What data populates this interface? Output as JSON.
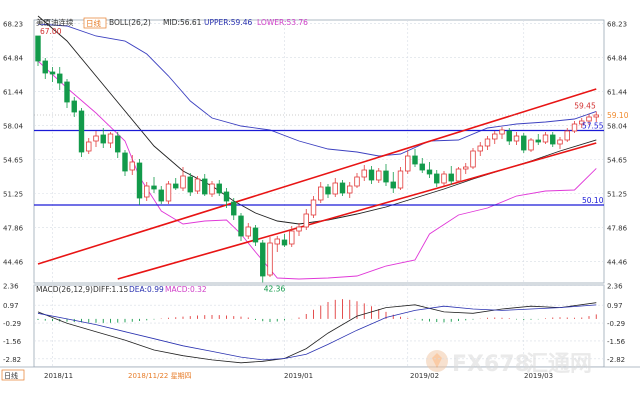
{
  "header": {
    "instrument": "美原油连续",
    "period_badge": "日线",
    "indicator": "BOLL(26,2)",
    "mid": "MID:56.61",
    "upper": "UPPER:59.46",
    "lower": "LOWER:53.76"
  },
  "macd_header": {
    "indicator": "MACD(26,12,9)",
    "diff": "DIFF:1.15",
    "dea": "DEA:0.99",
    "macd": "MACD:0.32"
  },
  "footer": {
    "period_badge": "日线",
    "date_labels": [
      "2018/11",
      "2018/11/22 星期四",
      "2019/01",
      "2019/02",
      "2019/03"
    ]
  },
  "watermark": {
    "brand": "FX678",
    "site": "汇通网"
  },
  "colors": {
    "up": "#e23b3b",
    "down": "#129a4a",
    "boll_mid": "#222222",
    "boll_upper": "#3c40c0",
    "boll_lower": "#e038d8",
    "channel": "#e81414",
    "support": "#1a1ad6",
    "dea": "#2a32b0"
  },
  "chart_data": [
    {
      "type": "candlestick",
      "title": "美原油连续",
      "y_ticks": [
        "68.23",
        "64.84",
        "61.44",
        "58.04",
        "54.65",
        "51.25",
        "47.86",
        "44.46"
      ],
      "ylim": [
        42.3,
        68.6
      ],
      "grid": true,
      "x_labels": [
        "2018/11",
        "2019/01",
        "2019/02",
        "2019/03"
      ],
      "candles": [
        {
          "o": 67.0,
          "h": 67.0,
          "l": 64.0,
          "c": 64.5
        },
        {
          "o": 64.5,
          "h": 64.8,
          "l": 62.7,
          "c": 63.3
        },
        {
          "o": 63.4,
          "h": 63.9,
          "l": 62.4,
          "c": 63.2
        },
        {
          "o": 63.2,
          "h": 63.9,
          "l": 61.6,
          "c": 62.3
        },
        {
          "o": 62.4,
          "h": 62.7,
          "l": 59.8,
          "c": 60.4
        },
        {
          "o": 60.5,
          "h": 60.9,
          "l": 58.9,
          "c": 59.4
        },
        {
          "o": 59.5,
          "h": 59.8,
          "l": 54.9,
          "c": 55.4
        },
        {
          "o": 55.5,
          "h": 56.8,
          "l": 55.2,
          "c": 56.4
        },
        {
          "o": 56.5,
          "h": 57.5,
          "l": 55.9,
          "c": 57.0
        },
        {
          "o": 57.1,
          "h": 57.8,
          "l": 55.8,
          "c": 56.3
        },
        {
          "o": 56.3,
          "h": 57.4,
          "l": 55.8,
          "c": 57.2
        },
        {
          "o": 57.0,
          "h": 57.4,
          "l": 54.8,
          "c": 55.4
        },
        {
          "o": 55.3,
          "h": 55.6,
          "l": 53.0,
          "c": 53.5
        },
        {
          "o": 53.6,
          "h": 55.1,
          "l": 53.1,
          "c": 54.4
        },
        {
          "o": 54.3,
          "h": 54.7,
          "l": 50.1,
          "c": 50.8
        },
        {
          "o": 50.9,
          "h": 52.4,
          "l": 50.5,
          "c": 52.0
        },
        {
          "o": 52.0,
          "h": 52.9,
          "l": 51.3,
          "c": 51.7
        },
        {
          "o": 51.6,
          "h": 52.0,
          "l": 50.2,
          "c": 50.5
        },
        {
          "o": 50.5,
          "h": 52.5,
          "l": 50.2,
          "c": 52.2
        },
        {
          "o": 52.2,
          "h": 52.8,
          "l": 51.6,
          "c": 51.8
        },
        {
          "o": 51.8,
          "h": 53.9,
          "l": 51.5,
          "c": 53.0
        },
        {
          "o": 52.9,
          "h": 53.3,
          "l": 51.0,
          "c": 51.4
        },
        {
          "o": 51.5,
          "h": 53.0,
          "l": 51.2,
          "c": 52.7
        },
        {
          "o": 52.7,
          "h": 53.2,
          "l": 51.0,
          "c": 51.2
        },
        {
          "o": 51.2,
          "h": 52.5,
          "l": 50.9,
          "c": 52.2
        },
        {
          "o": 52.2,
          "h": 52.6,
          "l": 51.0,
          "c": 51.3
        },
        {
          "o": 51.4,
          "h": 51.8,
          "l": 49.8,
          "c": 50.5
        },
        {
          "o": 50.4,
          "h": 50.8,
          "l": 48.6,
          "c": 49.1
        },
        {
          "o": 49.0,
          "h": 49.3,
          "l": 46.5,
          "c": 47.0
        },
        {
          "o": 47.0,
          "h": 48.3,
          "l": 46.7,
          "c": 47.9
        },
        {
          "o": 47.8,
          "h": 48.1,
          "l": 46.0,
          "c": 46.4
        },
        {
          "o": 46.3,
          "h": 46.6,
          "l": 42.36,
          "c": 43.0
        },
        {
          "o": 43.1,
          "h": 46.9,
          "l": 42.9,
          "c": 46.3
        },
        {
          "o": 46.2,
          "h": 47.0,
          "l": 45.4,
          "c": 46.7
        },
        {
          "o": 46.6,
          "h": 47.2,
          "l": 45.9,
          "c": 46.1
        },
        {
          "o": 46.2,
          "h": 48.0,
          "l": 45.9,
          "c": 47.5
        },
        {
          "o": 47.5,
          "h": 48.3,
          "l": 47.0,
          "c": 47.9
        },
        {
          "o": 47.9,
          "h": 49.7,
          "l": 47.6,
          "c": 49.2
        },
        {
          "o": 49.1,
          "h": 51.0,
          "l": 48.8,
          "c": 50.6
        },
        {
          "o": 50.6,
          "h": 52.4,
          "l": 50.3,
          "c": 51.9
        },
        {
          "o": 51.9,
          "h": 52.2,
          "l": 50.8,
          "c": 51.2
        },
        {
          "o": 51.2,
          "h": 52.8,
          "l": 50.9,
          "c": 52.3
        },
        {
          "o": 52.3,
          "h": 52.6,
          "l": 51.0,
          "c": 51.3
        },
        {
          "o": 51.3,
          "h": 52.4,
          "l": 50.8,
          "c": 52.0
        },
        {
          "o": 52.0,
          "h": 53.3,
          "l": 51.8,
          "c": 52.9
        },
        {
          "o": 52.9,
          "h": 54.1,
          "l": 52.5,
          "c": 53.6
        },
        {
          "o": 53.6,
          "h": 54.0,
          "l": 52.2,
          "c": 52.6
        },
        {
          "o": 52.6,
          "h": 53.8,
          "l": 52.3,
          "c": 53.5
        },
        {
          "o": 53.5,
          "h": 54.2,
          "l": 52.0,
          "c": 52.4
        },
        {
          "o": 52.4,
          "h": 53.4,
          "l": 51.3,
          "c": 51.8
        },
        {
          "o": 51.8,
          "h": 53.9,
          "l": 51.6,
          "c": 53.5
        },
        {
          "o": 53.5,
          "h": 55.6,
          "l": 53.2,
          "c": 55.0
        },
        {
          "o": 55.0,
          "h": 55.7,
          "l": 53.9,
          "c": 54.2
        },
        {
          "o": 54.2,
          "h": 54.8,
          "l": 53.3,
          "c": 53.6
        },
        {
          "o": 53.6,
          "h": 54.4,
          "l": 52.8,
          "c": 53.2
        },
        {
          "o": 53.2,
          "h": 53.6,
          "l": 51.9,
          "c": 52.3
        },
        {
          "o": 52.3,
          "h": 53.5,
          "l": 52.0,
          "c": 53.2
        },
        {
          "o": 53.2,
          "h": 54.0,
          "l": 52.1,
          "c": 52.5
        },
        {
          "o": 52.5,
          "h": 53.9,
          "l": 52.3,
          "c": 53.7
        },
        {
          "o": 53.7,
          "h": 54.3,
          "l": 53.2,
          "c": 53.9
        },
        {
          "o": 53.9,
          "h": 55.8,
          "l": 53.7,
          "c": 55.5
        },
        {
          "o": 55.5,
          "h": 56.4,
          "l": 55.0,
          "c": 56.0
        },
        {
          "o": 56.0,
          "h": 57.0,
          "l": 55.6,
          "c": 56.7
        },
        {
          "o": 56.7,
          "h": 57.5,
          "l": 56.2,
          "c": 57.2
        },
        {
          "o": 57.2,
          "h": 57.9,
          "l": 56.7,
          "c": 57.6
        },
        {
          "o": 57.5,
          "h": 57.8,
          "l": 56.1,
          "c": 56.5
        },
        {
          "o": 56.5,
          "h": 57.4,
          "l": 56.1,
          "c": 57.0
        },
        {
          "o": 57.0,
          "h": 57.3,
          "l": 55.3,
          "c": 55.6
        },
        {
          "o": 55.6,
          "h": 56.8,
          "l": 55.4,
          "c": 56.6
        },
        {
          "o": 56.6,
          "h": 57.2,
          "l": 56.1,
          "c": 56.4
        },
        {
          "o": 56.4,
          "h": 57.4,
          "l": 56.2,
          "c": 57.1
        },
        {
          "o": 57.1,
          "h": 57.4,
          "l": 55.9,
          "c": 56.2
        },
        {
          "o": 56.2,
          "h": 56.9,
          "l": 55.7,
          "c": 56.6
        },
        {
          "o": 56.6,
          "h": 57.8,
          "l": 56.4,
          "c": 57.5
        },
        {
          "o": 57.5,
          "h": 58.5,
          "l": 57.3,
          "c": 58.2
        },
        {
          "o": 58.2,
          "h": 58.8,
          "l": 57.8,
          "c": 58.5
        },
        {
          "o": 58.5,
          "h": 59.2,
          "l": 58.1,
          "c": 58.9
        },
        {
          "o": 58.9,
          "h": 59.45,
          "l": 58.4,
          "c": 59.1
        }
      ],
      "bollinger": {
        "mid": [
          [
            0,
            69.0
          ],
          [
            4,
            66.5
          ],
          [
            8,
            63.0
          ],
          [
            12,
            59.5
          ],
          [
            16,
            56.0
          ],
          [
            20,
            53.5
          ],
          [
            24,
            52.0
          ],
          [
            27,
            50.5
          ],
          [
            30,
            49.3
          ],
          [
            33,
            48.5
          ],
          [
            36,
            48.2
          ],
          [
            40,
            48.6
          ],
          [
            44,
            49.2
          ],
          [
            48,
            49.9
          ],
          [
            52,
            50.8
          ],
          [
            56,
            51.7
          ],
          [
            60,
            52.7
          ],
          [
            64,
            53.6
          ],
          [
            68,
            54.5
          ],
          [
            72,
            55.5
          ],
          [
            77,
            56.61
          ]
        ],
        "upper": [
          [
            0,
            68.2
          ],
          [
            4,
            68.0
          ],
          [
            8,
            67.0
          ],
          [
            12,
            66.5
          ],
          [
            15,
            65.2
          ],
          [
            18,
            63.0
          ],
          [
            21,
            60.5
          ],
          [
            24,
            58.8
          ],
          [
            28,
            58.0
          ],
          [
            32,
            57.6
          ],
          [
            36,
            56.5
          ],
          [
            40,
            55.7
          ],
          [
            44,
            55.4
          ],
          [
            47,
            55.0
          ],
          [
            50,
            55.2
          ],
          [
            54,
            56.5
          ],
          [
            58,
            56.6
          ],
          [
            62,
            57.8
          ],
          [
            66,
            58.2
          ],
          [
            70,
            58.4
          ],
          [
            74,
            58.7
          ],
          [
            77,
            59.46
          ]
        ],
        "lower": [
          [
            0,
            64.5
          ],
          [
            4,
            61.8
          ],
          [
            8,
            59.3
          ],
          [
            12,
            56.5
          ],
          [
            14,
            52.9
          ],
          [
            17,
            49.5
          ],
          [
            20,
            48.2
          ],
          [
            23,
            48.5
          ],
          [
            26,
            48.6
          ],
          [
            28,
            47.2
          ],
          [
            30,
            45.4
          ],
          [
            33,
            42.8
          ],
          [
            36,
            42.7
          ],
          [
            40,
            42.8
          ],
          [
            44,
            43.0
          ],
          [
            48,
            44.0
          ],
          [
            52,
            44.6
          ],
          [
            54,
            47.2
          ],
          [
            58,
            49.1
          ],
          [
            62,
            49.8
          ],
          [
            66,
            51.0
          ],
          [
            70,
            51.5
          ],
          [
            74,
            51.6
          ],
          [
            77,
            53.76
          ]
        ]
      },
      "channel_upper": [
        [
          0,
          44.2
        ],
        [
          77,
          61.7
        ]
      ],
      "channel_lower": [
        [
          11,
          42.7
        ],
        [
          77,
          56.3
        ]
      ],
      "support_levels": [
        57.55,
        50.1
      ],
      "annotations": [
        {
          "label": "67.00",
          "at": [
            0,
            67.0
          ]
        },
        {
          "label": "42.36",
          "at": [
            31,
            42.36
          ]
        },
        {
          "label": "59.45",
          "at": [
            77,
            59.45
          ]
        },
        {
          "label": "59.10",
          "at": [
            77,
            59.1
          ]
        },
        {
          "label": "57.55",
          "at": [
            77,
            57.55
          ]
        },
        {
          "label": "50.10",
          "at": [
            77,
            50.1
          ]
        }
      ]
    },
    {
      "type": "macd",
      "title": "MACD(26,12,9)",
      "y_ticks": [
        "2.36",
        "0.97",
        "-0.29",
        "-1.56",
        "-2.82"
      ],
      "ylim": [
        -3.4,
        2.4
      ],
      "series": [
        {
          "name": "DIFF",
          "values": [
            [
              0,
              0.5
            ],
            [
              4,
              -0.3
            ],
            [
              8,
              -0.9
            ],
            [
              12,
              -1.5
            ],
            [
              16,
              -2.2
            ],
            [
              20,
              -2.6
            ],
            [
              24,
              -2.9
            ],
            [
              28,
              -3.1
            ],
            [
              31,
              -3.0
            ],
            [
              34,
              -2.8
            ],
            [
              37,
              -2.1
            ],
            [
              40,
              -1.0
            ],
            [
              44,
              0.2
            ],
            [
              48,
              0.8
            ],
            [
              52,
              1.0
            ],
            [
              56,
              0.5
            ],
            [
              60,
              0.4
            ],
            [
              64,
              0.7
            ],
            [
              68,
              0.9
            ],
            [
              72,
              0.8
            ],
            [
              77,
              1.15
            ]
          ]
        },
        {
          "name": "DEA",
          "values": [
            [
              0,
              0.4
            ],
            [
              4,
              0.0
            ],
            [
              8,
              -0.4
            ],
            [
              12,
              -0.9
            ],
            [
              16,
              -1.4
            ],
            [
              20,
              -1.9
            ],
            [
              24,
              -2.3
            ],
            [
              28,
              -2.7
            ],
            [
              31,
              -2.9
            ],
            [
              34,
              -2.8
            ],
            [
              37,
              -2.5
            ],
            [
              40,
              -1.8
            ],
            [
              44,
              -0.8
            ],
            [
              48,
              0.1
            ],
            [
              52,
              0.6
            ],
            [
              56,
              0.9
            ],
            [
              60,
              0.7
            ],
            [
              64,
              0.6
            ],
            [
              68,
              0.7
            ],
            [
              72,
              0.8
            ],
            [
              77,
              0.99
            ]
          ]
        }
      ],
      "histogram": [
        -0.08,
        -0.12,
        -0.15,
        -0.18,
        -0.2,
        -0.22,
        -0.24,
        -0.26,
        -0.27,
        -0.28,
        -0.27,
        -0.26,
        -0.24,
        -0.2,
        -0.15,
        -0.1,
        -0.04,
        0.03,
        0.08,
        0.12,
        0.16,
        0.2,
        0.24,
        0.27,
        0.28,
        0.27,
        0.24,
        0.2,
        0.16,
        0.1,
        -0.08,
        -0.16,
        -0.22,
        -0.18,
        -0.1,
        -0.02,
        0.1,
        0.35,
        0.65,
        0.95,
        1.2,
        1.35,
        1.4,
        1.35,
        1.25,
        1.1,
        0.9,
        0.7,
        0.5,
        0.3,
        0.15,
        0.05,
        -0.05,
        -0.12,
        -0.18,
        -0.22,
        -0.24,
        -0.2,
        -0.15,
        -0.1,
        -0.05,
        0.02,
        0.08,
        0.1,
        0.08,
        0.05,
        -0.04,
        -0.08,
        -0.06,
        -0.03,
        0.05,
        0.1,
        0.12,
        0.1,
        0.08,
        0.1,
        0.2,
        0.32
      ]
    }
  ]
}
